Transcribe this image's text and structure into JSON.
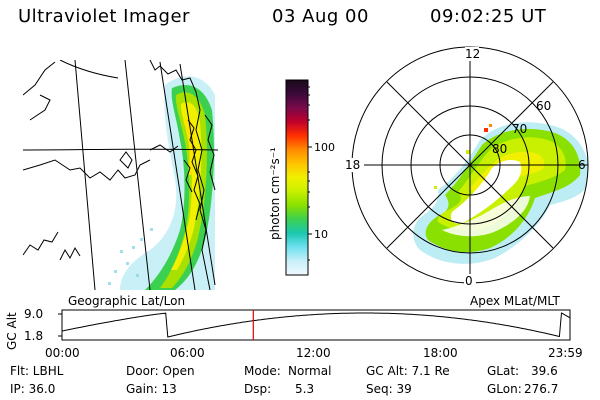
{
  "header": {
    "title": "Ultraviolet Imager",
    "date": "03 Aug 00",
    "time": "09:02:25 UT"
  },
  "map_left": {
    "label": "Geographic Lat/Lon"
  },
  "polar_right": {
    "label": "Apex MLat/MLT",
    "mlt_labels": [
      "12",
      "18",
      "6",
      "0"
    ],
    "lat_labels": [
      "60",
      "70",
      "80"
    ]
  },
  "colorbar": {
    "unit_label": "photon cm⁻²s⁻¹",
    "tick_labels": [
      "100",
      "10"
    ],
    "colors": [
      "#1a0a1a",
      "#3a0a3a",
      "#7a0a4a",
      "#c0002a",
      "#ff3000",
      "#ff8a00",
      "#ffc400",
      "#f0f000",
      "#c8f000",
      "#8ae000",
      "#3cd050",
      "#1ac8b0",
      "#70e0f0",
      "#c8f0f8",
      "#f0f8ff"
    ]
  },
  "timeline": {
    "axis_label": "GC Alt",
    "y_ticks": [
      "9.0",
      "1.8"
    ],
    "x_ticks": [
      "00:00",
      "06:00",
      "12:00",
      "18:00",
      "23:59"
    ],
    "marker_hour": 9.04
  },
  "info": {
    "row1": {
      "flt": "Flt: LBHL",
      "door": "Door: Open",
      "mode_label": "Mode:",
      "mode_value": "Normal",
      "gcalt": "GC Alt: 7.1 Re",
      "glat_label": "GLat:",
      "glat_value": "39.6"
    },
    "row2": {
      "ip": "IP: 36.0",
      "gain": "Gain: 13",
      "dsp_label": "Dsp:",
      "dsp_value": "5.3",
      "seq": "Seq: 39",
      "glon_label": "GLon:",
      "glon_value": "276.7"
    }
  }
}
